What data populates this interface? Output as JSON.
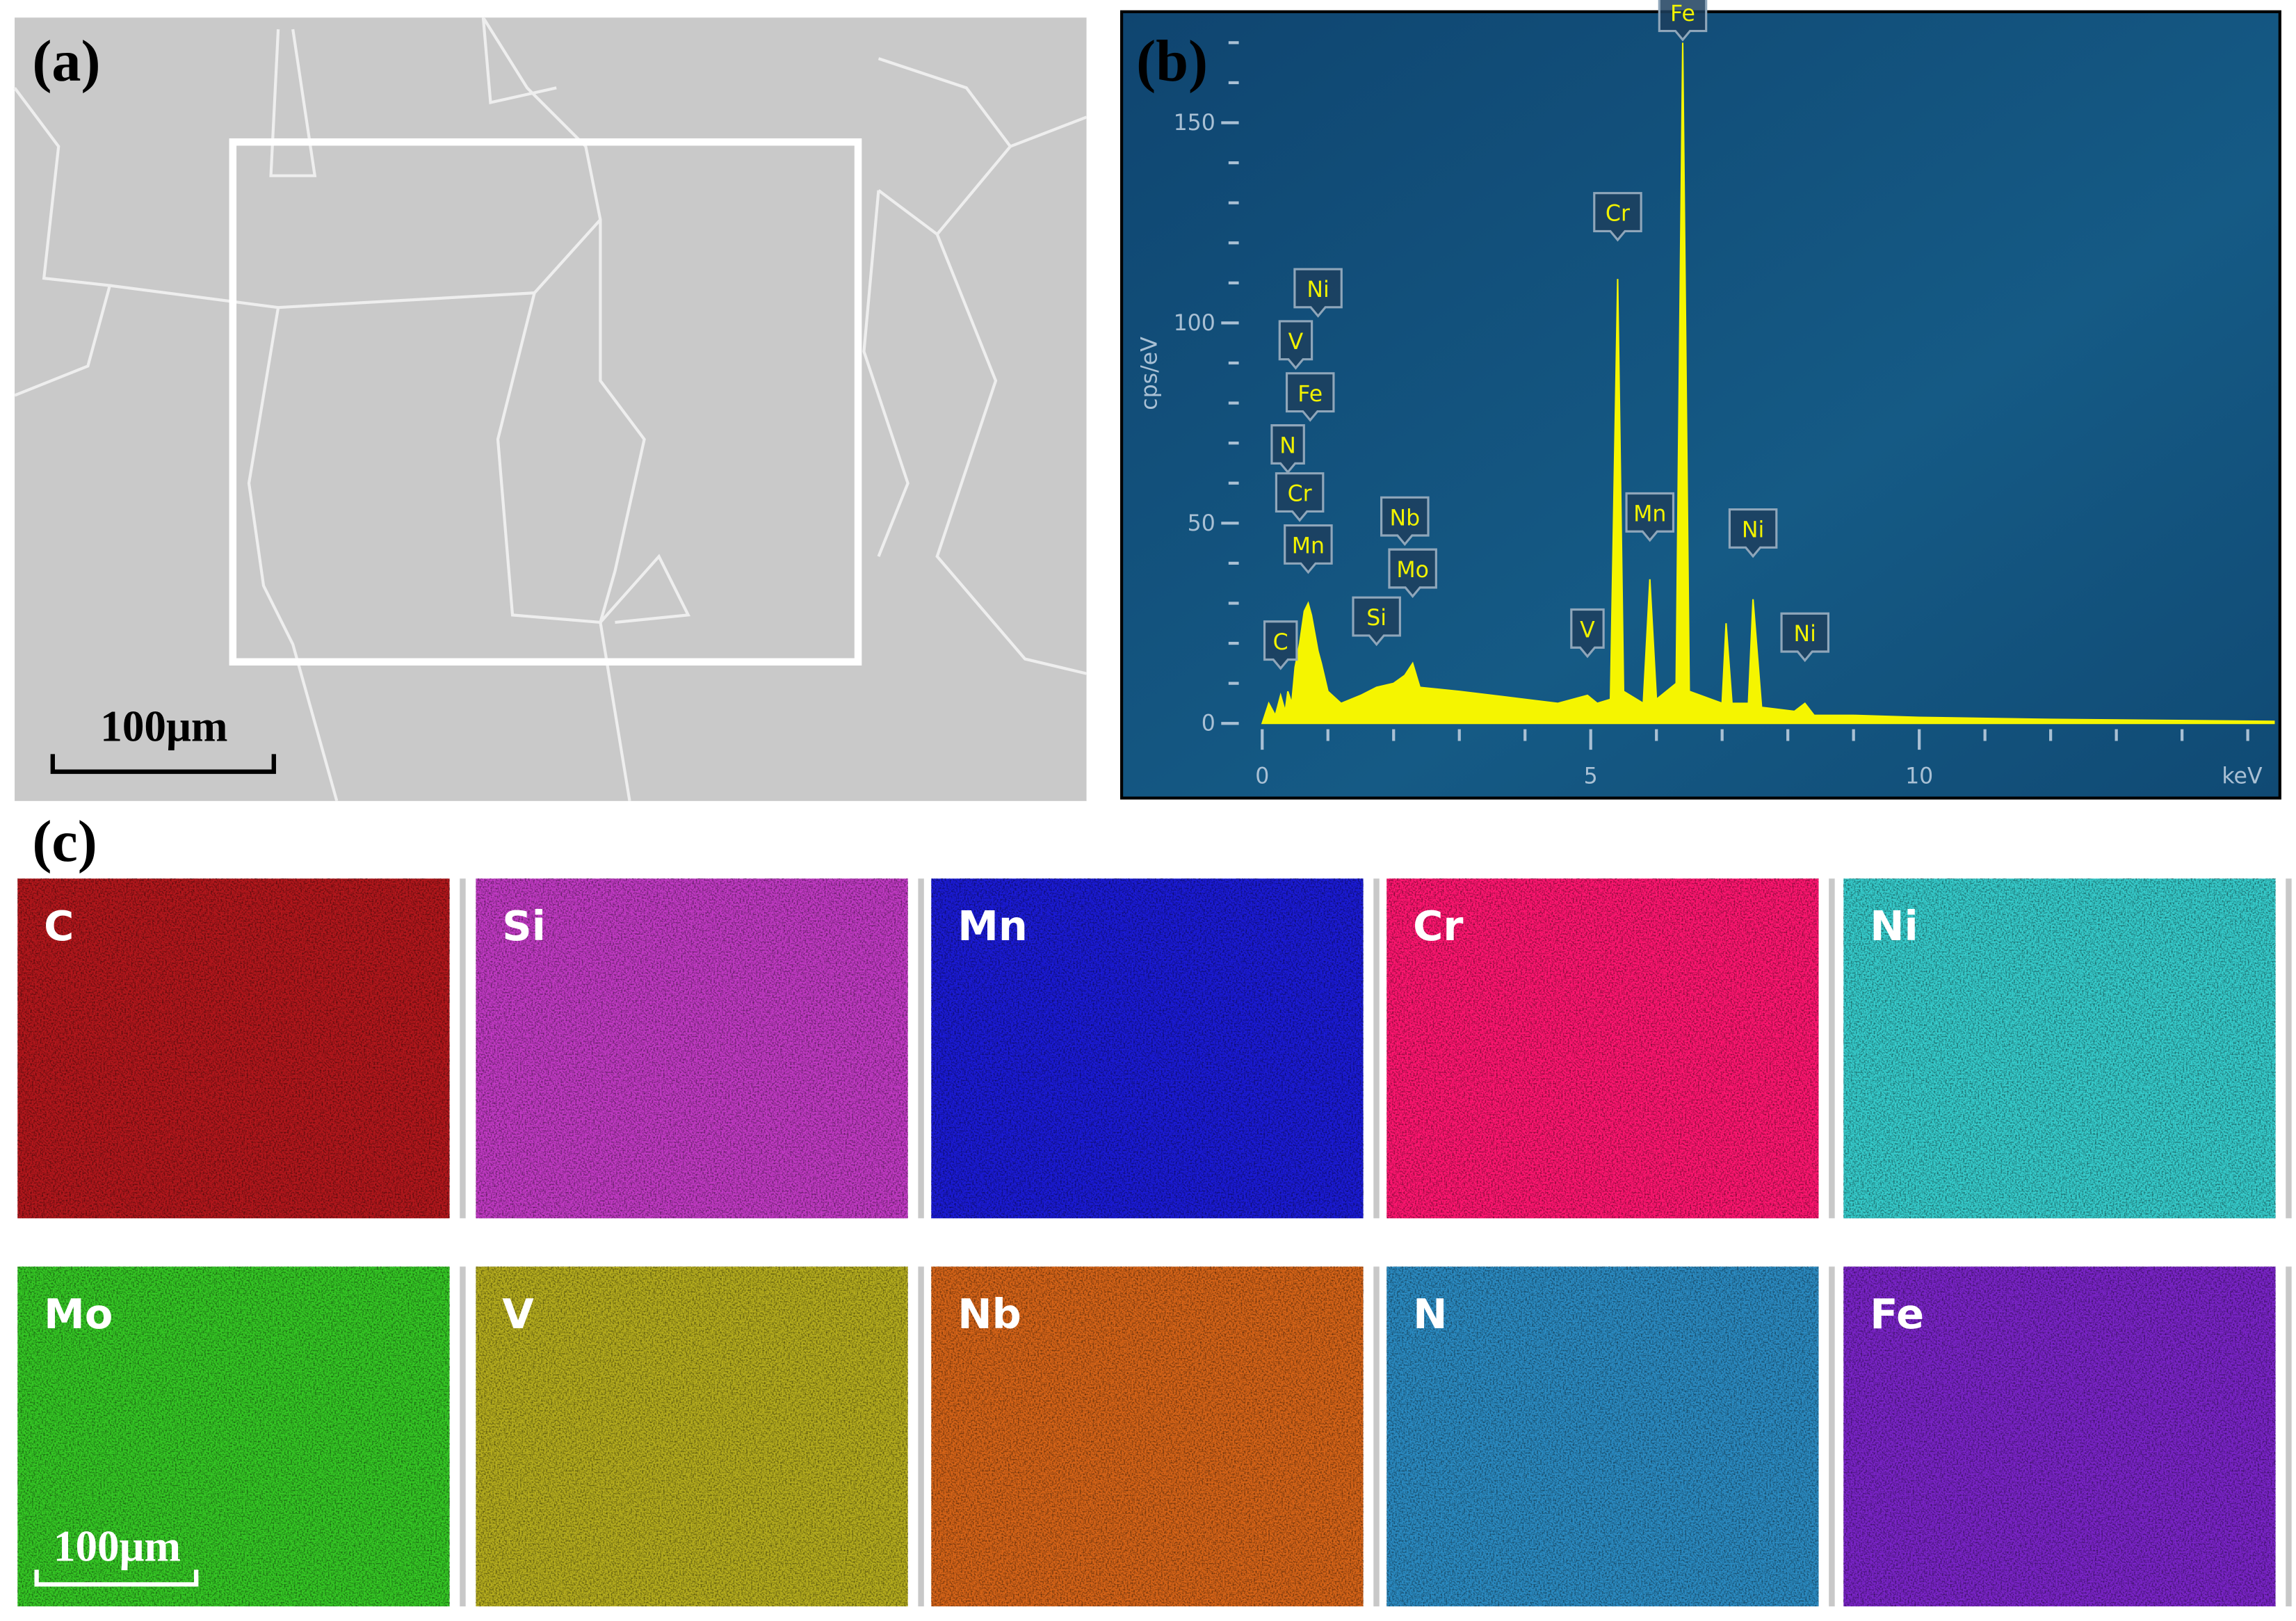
{
  "panels": {
    "a": {
      "label": "(a)",
      "scale_bar": "100μm"
    },
    "b": {
      "label": "(b)"
    },
    "c": {
      "label": "(c)",
      "scale_bar": "100μm",
      "maps": [
        {
          "element": "C",
          "color": "#b3171c"
        },
        {
          "element": "Si",
          "color": "#c13ac4"
        },
        {
          "element": "Mn",
          "color": "#1b1bd6"
        },
        {
          "element": "Cr",
          "color": "#ff1670"
        },
        {
          "element": "Ni",
          "color": "#36cccc"
        },
        {
          "element": "Mo",
          "color": "#35c825"
        },
        {
          "element": "V",
          "color": "#b5ad1e"
        },
        {
          "element": "Nb",
          "color": "#d66418"
        },
        {
          "element": "N",
          "color": "#2b8bc2"
        },
        {
          "element": "Fe",
          "color": "#7a24c8"
        }
      ]
    }
  },
  "chart_data": {
    "type": "area",
    "color": "#f5f500",
    "x_label": "keV",
    "y_label": "cps/eV",
    "x": [
      0,
      0.1,
      0.2,
      0.28,
      0.35,
      0.39,
      0.45,
      0.5,
      0.57,
      0.64,
      0.7,
      0.75,
      0.85,
      0.9,
      1.0,
      1.2,
      1.5,
      1.74,
      2.0,
      2.17,
      2.29,
      2.4,
      3,
      4,
      4.5,
      4.95,
      5.1,
      5.3,
      5.41,
      5.5,
      5.8,
      5.9,
      6.0,
      6.3,
      6.4,
      6.5,
      7.0,
      7.06,
      7.15,
      7.4,
      7.47,
      7.6,
      8.1,
      8.26,
      8.4,
      9,
      10,
      12,
      15.4
    ],
    "values": [
      0,
      5,
      2,
      7,
      3,
      8,
      5,
      14,
      20,
      28,
      30,
      27,
      18,
      15,
      8,
      5,
      7,
      9,
      10,
      12,
      15,
      9,
      8,
      6,
      5,
      7,
      5,
      6,
      111,
      8,
      5,
      36,
      6,
      10,
      170,
      8,
      5,
      25,
      5,
      5,
      31,
      4,
      3,
      5,
      2,
      2,
      1.5,
      1,
      0.5
    ],
    "xlim": [
      0,
      15.4
    ],
    "ylim": [
      0,
      177
    ],
    "xticks": [
      0,
      5,
      10
    ],
    "yticks": [
      0,
      50,
      100,
      150
    ],
    "xminorticks": [
      1,
      2,
      3,
      4,
      6,
      7,
      8,
      9,
      11,
      12,
      13,
      14,
      15
    ],
    "yminorticks": [
      10,
      20,
      30,
      40,
      60,
      70,
      80,
      90,
      110,
      120,
      130,
      140,
      160,
      170
    ],
    "annotations": [
      {
        "text": "C",
        "x": 0.28,
        "y": 13
      },
      {
        "text": "N",
        "x": 0.39,
        "y": 62
      },
      {
        "text": "Cr",
        "x": 0.57,
        "y": 50
      },
      {
        "text": "Mn",
        "x": 0.7,
        "y": 37
      },
      {
        "text": "Fe",
        "x": 0.73,
        "y": 75
      },
      {
        "text": "V",
        "x": 0.51,
        "y": 88
      },
      {
        "text": "Ni",
        "x": 0.85,
        "y": 101
      },
      {
        "text": "Si",
        "x": 1.74,
        "y": 19
      },
      {
        "text": "Nb",
        "x": 2.17,
        "y": 44
      },
      {
        "text": "Mo",
        "x": 2.29,
        "y": 31
      },
      {
        "text": "V",
        "x": 4.95,
        "y": 16
      },
      {
        "text": "Cr",
        "x": 5.41,
        "y": 120
      },
      {
        "text": "Mn",
        "x": 5.9,
        "y": 45
      },
      {
        "text": "Fe",
        "x": 6.4,
        "y": 170
      },
      {
        "text": "Ni",
        "x": 7.47,
        "y": 41
      },
      {
        "text": "Ni",
        "x": 8.26,
        "y": 15
      }
    ]
  }
}
